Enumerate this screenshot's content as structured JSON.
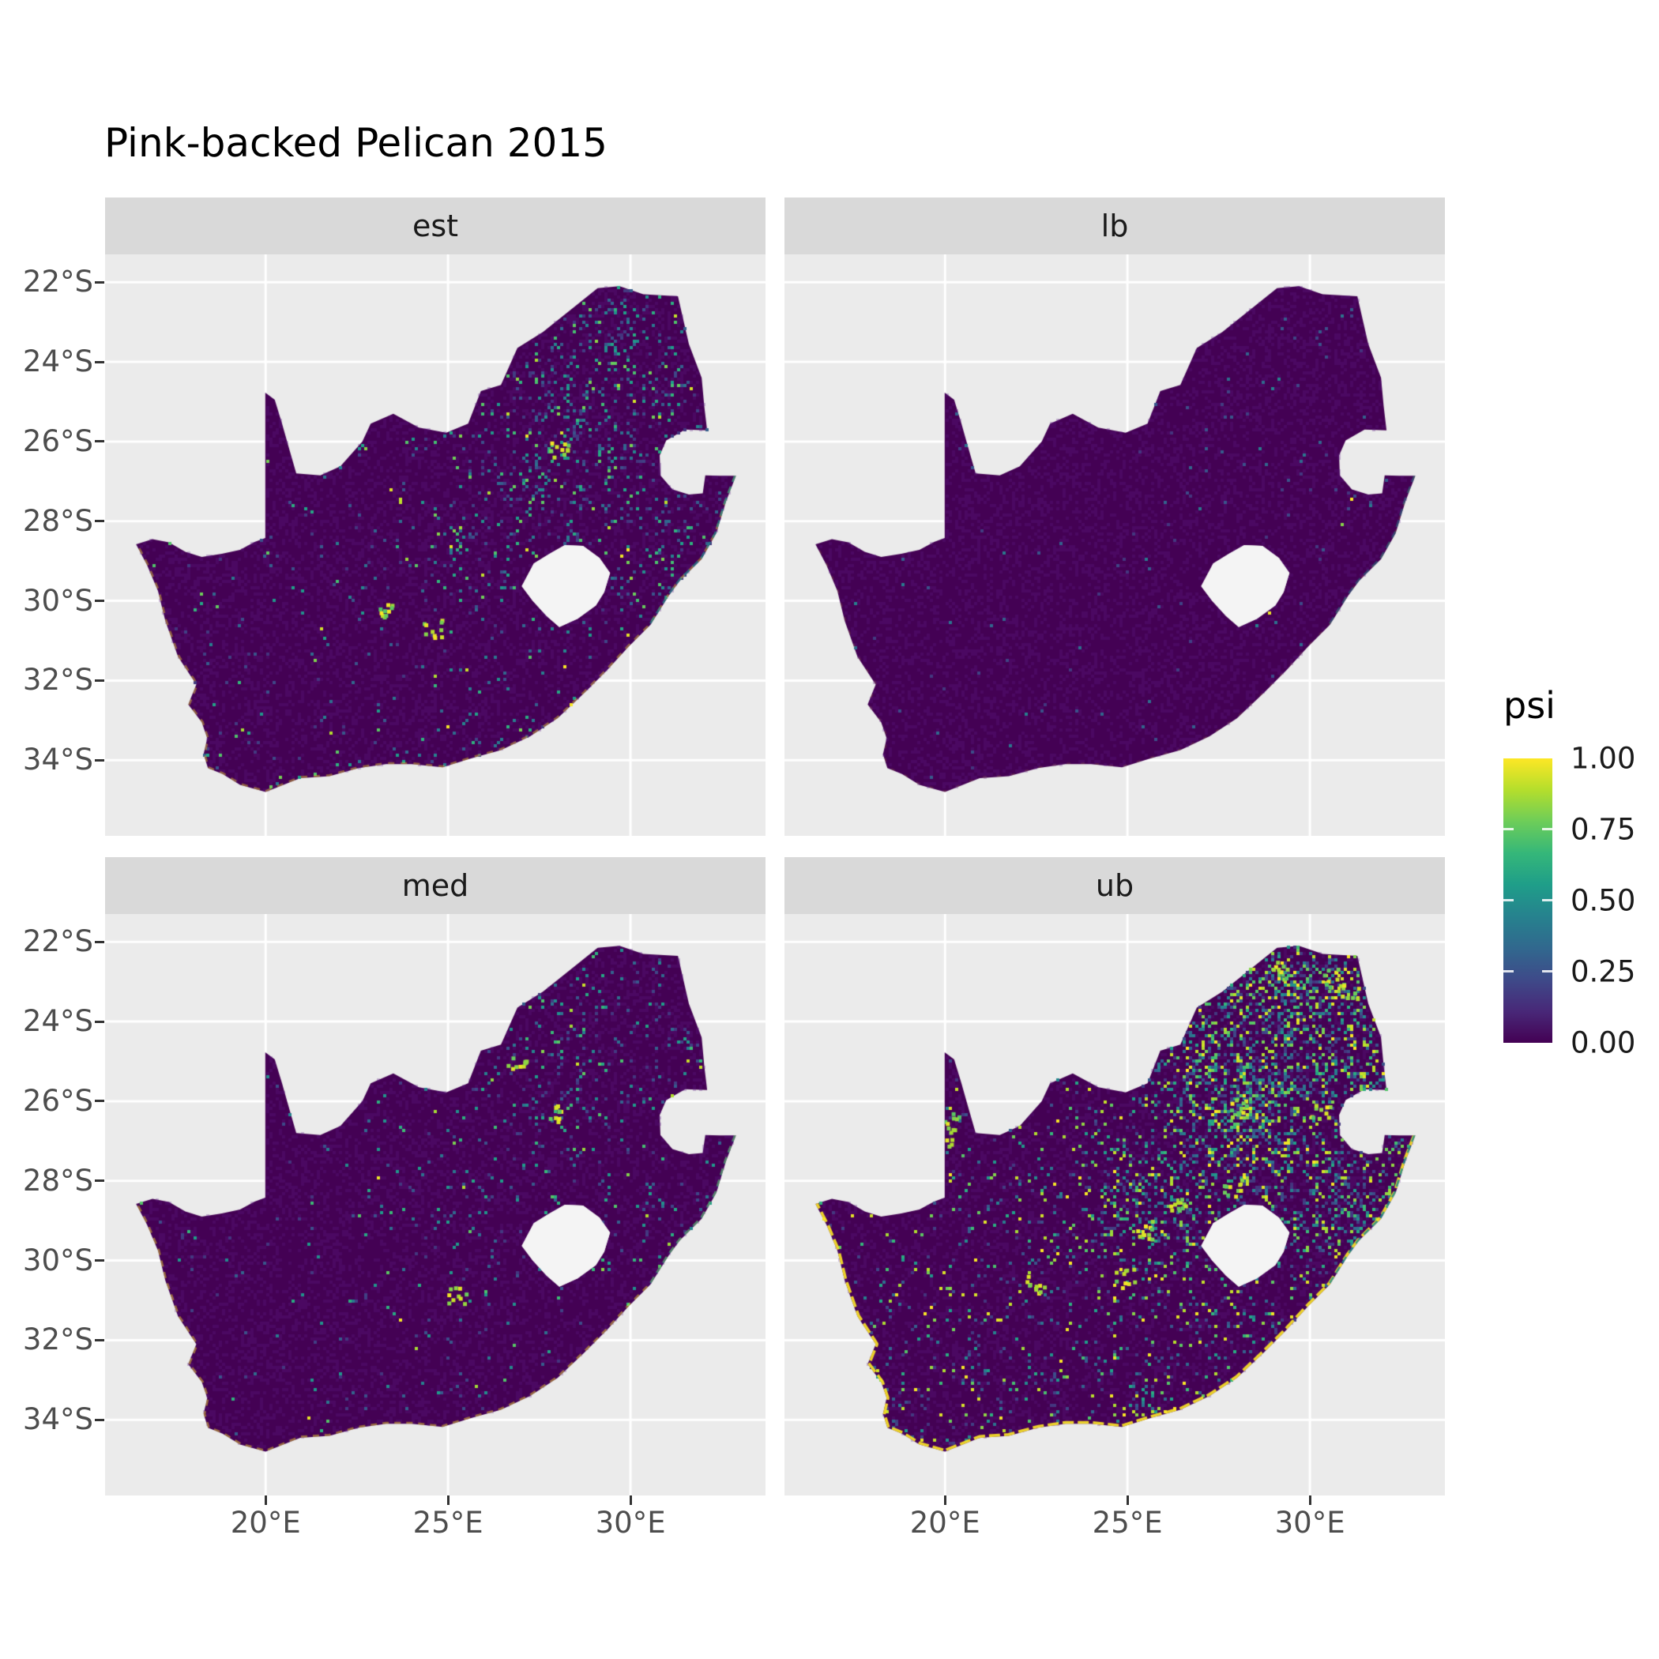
{
  "title": "Pink-backed Pelican 2015",
  "colors": {
    "page_bg": "#FFFFFF",
    "panel_bg": "#EBEBEB",
    "strip_bg": "#D9D9D9",
    "grid": "#FFFFFF",
    "map_base": "#440154",
    "axis_text": "#4D4D4D",
    "tick_mark": "#333333",
    "hole_fill": "#F4F4F4"
  },
  "axes": {
    "x": {
      "domain": [
        15.6,
        33.7
      ],
      "ticks": [
        {
          "lon": 20,
          "label": "20°E"
        },
        {
          "lon": 25,
          "label": "25°E"
        },
        {
          "lon": 30,
          "label": "30°E"
        }
      ]
    },
    "y": {
      "domain": [
        -21.3,
        -35.9
      ],
      "ticks": [
        {
          "lat": -22,
          "label": "22°S"
        },
        {
          "lat": -24,
          "label": "24°S"
        },
        {
          "lat": -26,
          "label": "26°S"
        },
        {
          "lat": -28,
          "label": "28°S"
        },
        {
          "lat": -30,
          "label": "30°S"
        },
        {
          "lat": -32,
          "label": "32°S"
        },
        {
          "lat": -34,
          "label": "34°S"
        }
      ]
    }
  },
  "legend": {
    "title": "psi",
    "labels": [
      "1.00",
      "0.75",
      "0.50",
      "0.25",
      "0.00"
    ]
  },
  "chart_data": {
    "type": "heatmap",
    "title": "Pink-backed Pelican 2015",
    "variable": "psi",
    "region": "South Africa",
    "facet_labels": [
      "est",
      "lb",
      "med",
      "ub"
    ],
    "x_ticks": [
      "20°E",
      "25°E",
      "30°E"
    ],
    "y_ticks": [
      "22°S",
      "24°S",
      "26°S",
      "28°S",
      "30°S",
      "32°S",
      "34°S"
    ],
    "scale": {
      "name": "viridis",
      "limits": [
        0,
        1
      ],
      "breaks": [
        1.0,
        0.75,
        0.5,
        0.25,
        0.0
      ],
      "stops": [
        "#440154",
        "#482878",
        "#3E4A89",
        "#31688E",
        "#26828E",
        "#1F9E89",
        "#35B779",
        "#6DCD59",
        "#B4DE2C",
        "#FDE725"
      ]
    },
    "facets": [
      {
        "label": "est",
        "summary": "estimated occupancy: mostly near 0; scattered low-moderate cells, denser around Gauteng, Limpopo and the KwaZulu-Natal coast; yellow-green fringe along coastline",
        "render": {
          "density": 0.13,
          "gain": 1.1,
          "vmax": 0.8,
          "hi": 0.045,
          "coast_alpha": 0.4,
          "coast_width": 5,
          "coast_dash": [
            8,
            8
          ],
          "east_alpha": 0.7,
          "seed": 101,
          "blobs": [
            [
              28.05,
              -26.2
            ],
            [
              24.6,
              -30.7
            ],
            [
              23.4,
              -30.2
            ]
          ]
        }
      },
      {
        "label": "lb",
        "summary": "lower credible bound: almost uniformly near 0 with only a few faint low-value cells and a light teal fringe on the east coast",
        "render": {
          "density": 0.022,
          "gain": 0.6,
          "vmax": 0.45,
          "hi": 0.008,
          "coast_alpha": 0.12,
          "coast_width": 4,
          "coast_dash": [
            5,
            13
          ],
          "east_alpha": 0.45,
          "seed": 202,
          "blobs": []
        }
      },
      {
        "label": "med",
        "summary": "median occupancy: mostly near 0; sparse low values with a few green spots and yellow coastal fringe in the south",
        "render": {
          "density": 0.08,
          "gain": 1.0,
          "vmax": 0.75,
          "hi": 0.04,
          "coast_alpha": 0.45,
          "coast_width": 5,
          "coast_dash": [
            8,
            7
          ],
          "east_alpha": 0.6,
          "seed": 303,
          "blobs": [
            [
              25.25,
              -30.85
            ],
            [
              28.0,
              -26.3
            ],
            [
              26.9,
              -25.1
            ]
          ]
        }
      },
      {
        "label": "ub",
        "summary": "upper credible bound: widespread low-moderate values, many moderate-high cells in the north and east, bright yellow clusters and a strong yellow coastline fringe",
        "render": {
          "density": 0.3,
          "gain": 1.5,
          "vmax": 1.0,
          "hi": 0.1,
          "coast_alpha": 0.9,
          "coast_width": 7,
          "coast_dash": [
            14,
            5
          ],
          "east_alpha": 0.85,
          "seed": 404,
          "blobs": [
            [
              20.15,
              -26.45
            ],
            [
              20.05,
              -26.9
            ],
            [
              24.95,
              -30.45
            ],
            [
              26.35,
              -28.55
            ],
            [
              28.05,
              -26.2
            ],
            [
              25.45,
              -29.25
            ],
            [
              29.2,
              -22.75
            ],
            [
              30.6,
              -22.9
            ],
            [
              31.1,
              -23.3
            ],
            [
              27.9,
              -28.2
            ],
            [
              22.5,
              -30.6
            ],
            [
              30.3,
              -26.3
            ]
          ]
        }
      }
    ],
    "hotspots": [
      {
        "lon": 28.1,
        "lat": -26.15,
        "r": 1.7,
        "s": 1.0
      },
      {
        "lon": 31.0,
        "lat": -24.5,
        "r": 1.5,
        "s": 0.55
      },
      {
        "lon": 30.9,
        "lat": -28.6,
        "r": 1.4,
        "s": 0.65
      },
      {
        "lon": 29.6,
        "lat": -22.9,
        "r": 1.3,
        "s": 0.55
      },
      {
        "lon": 27.5,
        "lat": -23.6,
        "r": 2.0,
        "s": 0.4
      },
      {
        "lon": 26.0,
        "lat": -28.9,
        "r": 1.6,
        "s": 0.35
      },
      {
        "lon": 24.8,
        "lat": -28.6,
        "r": 1.2,
        "s": 0.3
      },
      {
        "lon": 18.7,
        "lat": -33.9,
        "r": 0.9,
        "s": 0.35
      },
      {
        "lon": 25.6,
        "lat": -33.8,
        "r": 0.9,
        "s": 0.3
      }
    ],
    "geometry": {
      "coast_start_index": 44,
      "east_coast_end_index": 50,
      "outline": [
        [
          16.45,
          -28.58
        ],
        [
          16.9,
          -28.45
        ],
        [
          17.35,
          -28.53
        ],
        [
          17.8,
          -28.77
        ],
        [
          18.25,
          -28.9
        ],
        [
          18.8,
          -28.82
        ],
        [
          19.3,
          -28.72
        ],
        [
          19.7,
          -28.52
        ],
        [
          19.99,
          -28.42
        ],
        [
          19.99,
          -24.77
        ],
        [
          20.25,
          -24.95
        ],
        [
          20.45,
          -25.55
        ],
        [
          20.62,
          -26.1
        ],
        [
          20.84,
          -26.8
        ],
        [
          21.5,
          -26.85
        ],
        [
          22.05,
          -26.62
        ],
        [
          22.65,
          -26.0
        ],
        [
          22.88,
          -25.55
        ],
        [
          23.5,
          -25.3
        ],
        [
          24.2,
          -25.65
        ],
        [
          24.95,
          -25.78
        ],
        [
          25.55,
          -25.55
        ],
        [
          25.9,
          -24.73
        ],
        [
          26.45,
          -24.58
        ],
        [
          26.9,
          -23.65
        ],
        [
          27.6,
          -23.25
        ],
        [
          28.35,
          -22.7
        ],
        [
          29.1,
          -22.15
        ],
        [
          29.7,
          -22.1
        ],
        [
          30.35,
          -22.3
        ],
        [
          31.3,
          -22.35
        ],
        [
          31.6,
          -23.55
        ],
        [
          31.95,
          -24.4
        ],
        [
          32.02,
          -25.1
        ],
        [
          32.1,
          -25.72
        ],
        [
          31.5,
          -25.7
        ],
        [
          30.98,
          -25.97
        ],
        [
          30.8,
          -26.35
        ],
        [
          30.82,
          -26.85
        ],
        [
          31.15,
          -27.2
        ],
        [
          31.6,
          -27.33
        ],
        [
          31.98,
          -27.3
        ],
        [
          32.05,
          -26.85
        ],
        [
          32.45,
          -26.86
        ],
        [
          32.89,
          -26.86
        ],
        [
          32.62,
          -27.5
        ],
        [
          32.35,
          -28.3
        ],
        [
          31.95,
          -28.95
        ],
        [
          31.35,
          -29.5
        ],
        [
          31.05,
          -29.87
        ],
        [
          30.55,
          -30.6
        ],
        [
          29.95,
          -31.15
        ],
        [
          29.35,
          -31.75
        ],
        [
          28.75,
          -32.3
        ],
        [
          28.0,
          -32.95
        ],
        [
          27.25,
          -33.4
        ],
        [
          26.45,
          -33.75
        ],
        [
          25.65,
          -33.95
        ],
        [
          24.85,
          -34.18
        ],
        [
          24.0,
          -34.1
        ],
        [
          23.3,
          -34.1
        ],
        [
          22.55,
          -34.2
        ],
        [
          21.75,
          -34.4
        ],
        [
          20.95,
          -34.45
        ],
        [
          20.0,
          -34.8
        ],
        [
          19.3,
          -34.62
        ],
        [
          18.82,
          -34.35
        ],
        [
          18.42,
          -34.2
        ],
        [
          18.3,
          -33.85
        ],
        [
          18.4,
          -33.45
        ],
        [
          18.25,
          -33.05
        ],
        [
          17.88,
          -32.6
        ],
        [
          18.1,
          -32.1
        ],
        [
          17.6,
          -31.4
        ],
        [
          17.25,
          -30.5
        ],
        [
          17.05,
          -29.75
        ],
        [
          16.75,
          -29.1
        ]
      ],
      "lesotho_hole": [
        [
          27.02,
          -29.63
        ],
        [
          27.35,
          -29.06
        ],
        [
          27.78,
          -28.82
        ],
        [
          28.2,
          -28.6
        ],
        [
          28.7,
          -28.62
        ],
        [
          29.15,
          -28.92
        ],
        [
          29.44,
          -29.3
        ],
        [
          29.28,
          -29.78
        ],
        [
          29.05,
          -30.12
        ],
        [
          28.55,
          -30.45
        ],
        [
          28.05,
          -30.66
        ],
        [
          27.7,
          -30.38
        ],
        [
          27.32,
          -30.0
        ]
      ]
    }
  }
}
